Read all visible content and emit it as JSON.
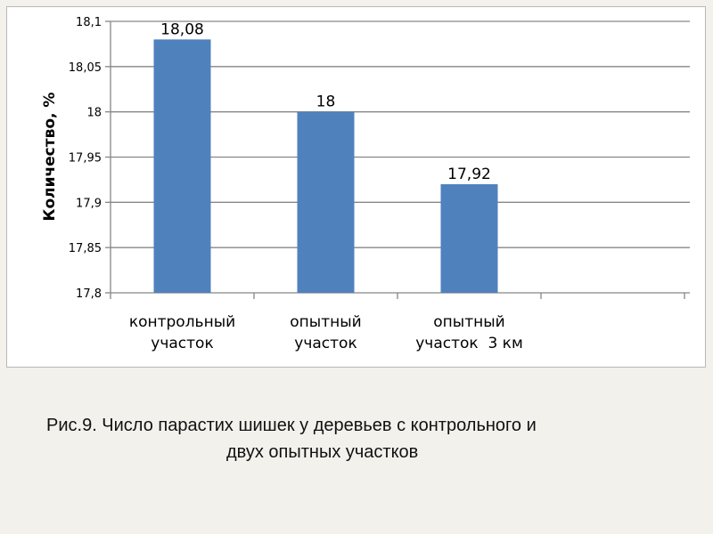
{
  "chart_data": {
    "type": "bar",
    "categories": [
      [
        "контрольный",
        "участок"
      ],
      [
        "опытный",
        "участок"
      ],
      [
        "опытный",
        "участок  3 км"
      ]
    ],
    "values": [
      18.08,
      18,
      17.92
    ],
    "value_labels": [
      "18,08",
      "18",
      "17,92"
    ],
    "ylabel": "Количество, %",
    "ylim": [
      17.8,
      18.1
    ],
    "yticks": [
      17.8,
      17.85,
      17.9,
      17.95,
      18,
      18.05,
      18.1
    ],
    "ytick_labels": [
      "17,8",
      "17,85",
      "17,9",
      "17,95",
      "18",
      "18,05",
      "18,1"
    ],
    "grid": true,
    "bar_color": "#4f81bd",
    "grid_color": "#868686"
  },
  "caption": {
    "line1": "Рис.9. Число парастих шишек у деревьев  с контрольного и",
    "line2": "двух опытных участков"
  }
}
